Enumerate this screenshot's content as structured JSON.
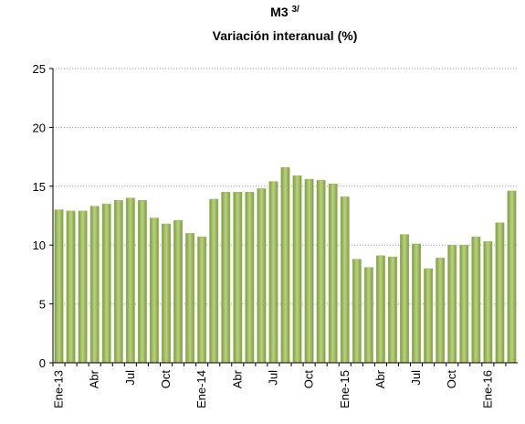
{
  "chart_data": {
    "type": "bar",
    "title": "M3",
    "title_superscript": "3/",
    "subtitle": "Variación interanual (%)",
    "categories": [
      "Ene-13",
      null,
      null,
      "Abr",
      null,
      null,
      "Jul",
      null,
      null,
      "Oct",
      null,
      null,
      "Ene-14",
      null,
      null,
      "Abr",
      null,
      null,
      "Jul",
      null,
      null,
      "Oct",
      null,
      null,
      "Ene-15",
      null,
      null,
      "Abr",
      null,
      null,
      "Jul",
      null,
      null,
      "Oct",
      null,
      null,
      "Ene-16",
      null,
      null
    ],
    "values": [
      13.0,
      12.9,
      12.9,
      13.3,
      13.5,
      13.8,
      14.0,
      13.8,
      12.3,
      11.8,
      12.1,
      11.0,
      10.7,
      13.9,
      14.5,
      14.5,
      14.5,
      14.8,
      15.4,
      16.6,
      15.9,
      15.6,
      15.5,
      15.2,
      14.1,
      8.8,
      8.1,
      9.1,
      9.0,
      10.9,
      10.1,
      8.0,
      8.9,
      10.0,
      10.0,
      10.7,
      10.3,
      11.9,
      14.6
    ],
    "color": "#9bbb59",
    "ylim": [
      0,
      25
    ],
    "yticks": [
      0,
      5,
      10,
      15,
      20,
      25
    ],
    "grid": true
  }
}
